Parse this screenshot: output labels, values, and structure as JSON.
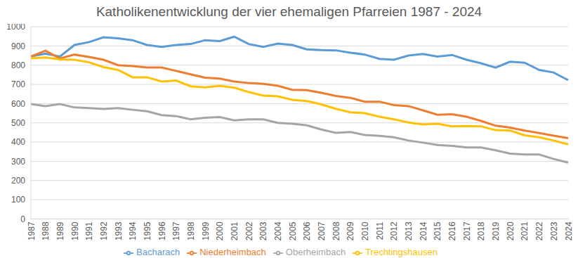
{
  "chart_data": {
    "type": "line",
    "title": "Katholikenentwicklung der vier ehemaligen Pfarreien 1987 - 2024",
    "categories": [
      "1987",
      "1988",
      "1989",
      "1990",
      "1991",
      "1992",
      "1993",
      "1994",
      "1995",
      "1996",
      "1997",
      "1998",
      "1999",
      "2000",
      "2001",
      "2002",
      "2003",
      "2004",
      "2005",
      "2006",
      "2007",
      "2008",
      "2009",
      "2010",
      "2011",
      "2012",
      "2013",
      "2014",
      "2015",
      "2016",
      "2017",
      "2018",
      "2019",
      "2020",
      "2021",
      "2022",
      "2023",
      "2024"
    ],
    "series": [
      {
        "name": "Bacharach",
        "color": "#5b9bd5",
        "values": [
          845,
          860,
          845,
          905,
          920,
          945,
          940,
          930,
          905,
          895,
          905,
          910,
          930,
          925,
          948,
          910,
          895,
          912,
          905,
          882,
          878,
          877,
          865,
          855,
          833,
          828,
          850,
          858,
          845,
          853,
          828,
          810,
          787,
          818,
          813,
          775,
          762,
          722
        ]
      },
      {
        "name": "Niederheimbach",
        "color": "#ed7d31",
        "values": [
          845,
          875,
          835,
          855,
          843,
          828,
          800,
          795,
          788,
          788,
          770,
          752,
          735,
          730,
          715,
          707,
          703,
          693,
          672,
          670,
          656,
          640,
          630,
          610,
          610,
          592,
          587,
          565,
          542,
          545,
          532,
          510,
          485,
          475,
          460,
          447,
          433,
          420
        ]
      },
      {
        "name": "Oberheimbach",
        "color": "#a5a5a5",
        "values": [
          598,
          587,
          598,
          580,
          577,
          572,
          577,
          568,
          560,
          540,
          535,
          518,
          526,
          530,
          513,
          518,
          518,
          500,
          495,
          487,
          465,
          448,
          452,
          437,
          432,
          425,
          408,
          397,
          385,
          380,
          372,
          372,
          357,
          340,
          335,
          335,
          312,
          293
        ]
      },
      {
        "name": "Trechtingshausen",
        "color": "#ffc000",
        "values": [
          835,
          840,
          830,
          828,
          815,
          790,
          775,
          737,
          737,
          715,
          720,
          690,
          685,
          693,
          683,
          660,
          642,
          638,
          620,
          613,
          596,
          573,
          555,
          550,
          532,
          518,
          502,
          492,
          495,
          482,
          483,
          482,
          462,
          460,
          435,
          425,
          408,
          388
        ]
      }
    ],
    "ylim": [
      0,
      1000
    ],
    "yticks": [
      0,
      100,
      200,
      300,
      400,
      500,
      600,
      700,
      800,
      900,
      1000
    ],
    "grid": true,
    "legend": "bottom"
  }
}
